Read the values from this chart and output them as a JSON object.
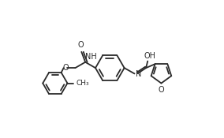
{
  "bg_color": "#ffffff",
  "line_color": "#2a2a2a",
  "line_width": 1.3,
  "font_size": 7.0,
  "xlim": [
    0,
    10.5
  ],
  "ylim": [
    0.5,
    6.5
  ]
}
